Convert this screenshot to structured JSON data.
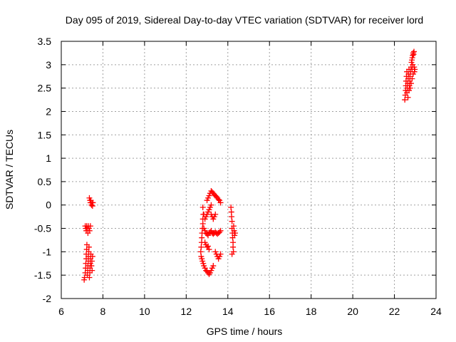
{
  "chart_data": {
    "type": "scatter",
    "title": "Day 095 of 2019, Sidereal Day-to-day VTEC variation (SDTVAR) for receiver lord",
    "xlabel": "GPS time / hours",
    "ylabel": "SDTVAR / TECUs",
    "xlim": [
      6,
      24
    ],
    "ylim": [
      -2,
      3.5
    ],
    "xticks": [
      6,
      8,
      10,
      12,
      14,
      16,
      18,
      20,
      22,
      24
    ],
    "yticks": [
      -2,
      -1.5,
      -1,
      -0.5,
      0,
      0.5,
      1,
      1.5,
      2,
      2.5,
      3,
      3.5
    ],
    "grid": true,
    "marker": "plus",
    "color": "#ff0000",
    "series": [
      {
        "points": [
          [
            7.1,
            -1.6
          ],
          [
            7.12,
            -1.55
          ],
          [
            7.15,
            -1.45
          ],
          [
            7.17,
            -1.35
          ],
          [
            7.18,
            -1.25
          ],
          [
            7.2,
            -1.15
          ],
          [
            7.2,
            -1.05
          ],
          [
            7.22,
            -0.95
          ],
          [
            7.23,
            -0.85
          ],
          [
            7.25,
            -1.5
          ],
          [
            7.27,
            -1.4
          ],
          [
            7.28,
            -1.3
          ],
          [
            7.3,
            -1.2
          ],
          [
            7.3,
            -1.1
          ],
          [
            7.32,
            -1.0
          ],
          [
            7.33,
            -0.9
          ],
          [
            7.35,
            -1.55
          ],
          [
            7.37,
            -1.45
          ],
          [
            7.38,
            -1.35
          ],
          [
            7.4,
            -1.25
          ],
          [
            7.4,
            -1.15
          ],
          [
            7.42,
            -1.05
          ],
          [
            7.45,
            -1.3
          ],
          [
            7.47,
            -1.2
          ],
          [
            7.48,
            -1.4
          ],
          [
            7.5,
            -1.1
          ],
          [
            7.15,
            -0.45
          ],
          [
            7.18,
            -0.5
          ],
          [
            7.2,
            -0.55
          ],
          [
            7.22,
            -0.45
          ],
          [
            7.25,
            -0.5
          ],
          [
            7.28,
            -0.6
          ],
          [
            7.3,
            -0.45
          ],
          [
            7.33,
            -0.5
          ],
          [
            7.36,
            -0.55
          ],
          [
            7.4,
            -0.45
          ],
          [
            7.35,
            0.15
          ],
          [
            7.38,
            0.1
          ],
          [
            7.4,
            0.05
          ],
          [
            7.42,
            0.1
          ],
          [
            7.45,
            0.0
          ],
          [
            7.47,
            0.05
          ],
          [
            7.5,
            -0.02
          ],
          [
            7.52,
            0.05
          ],
          [
            12.7,
            -1.0
          ],
          [
            12.72,
            -0.9
          ],
          [
            12.74,
            -0.8
          ],
          [
            12.75,
            -0.7
          ],
          [
            12.76,
            -0.6
          ],
          [
            12.78,
            -0.5
          ],
          [
            12.8,
            -0.4
          ],
          [
            12.8,
            -0.3
          ],
          [
            12.82,
            -0.2
          ],
          [
            12.72,
            -1.1
          ],
          [
            12.75,
            -1.15
          ],
          [
            12.78,
            -1.2
          ],
          [
            12.82,
            -1.25
          ],
          [
            12.85,
            -1.3
          ],
          [
            12.9,
            -1.35
          ],
          [
            12.95,
            -1.4
          ],
          [
            13.0,
            -1.42
          ],
          [
            13.05,
            -1.45
          ],
          [
            13.1,
            -1.48
          ],
          [
            13.15,
            -1.45
          ],
          [
            13.2,
            -1.4
          ],
          [
            13.25,
            -1.35
          ],
          [
            13.3,
            -1.3
          ],
          [
            12.8,
            -0.05
          ],
          [
            12.85,
            -0.2
          ],
          [
            12.9,
            -0.3
          ],
          [
            12.95,
            -0.25
          ],
          [
            13.0,
            -0.2
          ],
          [
            13.05,
            -0.15
          ],
          [
            13.1,
            -0.1
          ],
          [
            13.15,
            -0.05
          ],
          [
            13.2,
            0.0
          ],
          [
            13.0,
            0.1
          ],
          [
            13.05,
            0.15
          ],
          [
            13.1,
            0.2
          ],
          [
            13.15,
            0.25
          ],
          [
            13.2,
            0.3
          ],
          [
            13.25,
            0.28
          ],
          [
            13.3,
            0.25
          ],
          [
            13.35,
            0.22
          ],
          [
            13.4,
            0.2
          ],
          [
            13.45,
            0.18
          ],
          [
            13.5,
            0.15
          ],
          [
            13.55,
            0.12
          ],
          [
            13.6,
            0.1
          ],
          [
            13.65,
            0.05
          ],
          [
            12.85,
            -0.5
          ],
          [
            12.9,
            -0.55
          ],
          [
            12.95,
            -0.6
          ],
          [
            13.0,
            -0.62
          ],
          [
            13.05,
            -0.65
          ],
          [
            13.1,
            -0.6
          ],
          [
            13.15,
            -0.58
          ],
          [
            13.2,
            -0.55
          ],
          [
            13.25,
            -0.6
          ],
          [
            13.3,
            -0.62
          ],
          [
            13.35,
            -0.6
          ],
          [
            13.4,
            -0.58
          ],
          [
            13.45,
            -0.6
          ],
          [
            13.5,
            -0.62
          ],
          [
            13.55,
            -0.6
          ],
          [
            13.6,
            -0.58
          ],
          [
            13.65,
            -0.55
          ],
          [
            12.9,
            -0.8
          ],
          [
            12.95,
            -0.85
          ],
          [
            13.0,
            -0.9
          ],
          [
            13.05,
            -0.88
          ],
          [
            13.1,
            -0.95
          ],
          [
            13.2,
            -0.2
          ],
          [
            13.25,
            -0.25
          ],
          [
            13.3,
            -0.3
          ],
          [
            13.35,
            -0.25
          ],
          [
            13.4,
            -0.2
          ],
          [
            13.4,
            -1.0
          ],
          [
            13.45,
            -1.05
          ],
          [
            13.5,
            -1.1
          ],
          [
            13.55,
            -1.15
          ],
          [
            13.6,
            -1.1
          ],
          [
            13.65,
            -1.05
          ],
          [
            14.15,
            -0.05
          ],
          [
            14.17,
            -0.15
          ],
          [
            14.18,
            -0.25
          ],
          [
            14.2,
            -0.35
          ],
          [
            14.2,
            -0.5
          ],
          [
            14.22,
            -0.6
          ],
          [
            14.23,
            -0.7
          ],
          [
            14.25,
            -0.8
          ],
          [
            14.25,
            -0.9
          ],
          [
            14.27,
            -1.0
          ],
          [
            14.2,
            -1.05
          ],
          [
            14.3,
            -0.55
          ],
          [
            14.32,
            -0.65
          ],
          [
            14.35,
            -0.6
          ],
          [
            14.28,
            -0.45
          ],
          [
            22.5,
            2.25
          ],
          [
            22.52,
            2.35
          ],
          [
            22.54,
            2.45
          ],
          [
            22.55,
            2.55
          ],
          [
            22.56,
            2.65
          ],
          [
            22.58,
            2.75
          ],
          [
            22.6,
            2.85
          ],
          [
            22.6,
            2.4
          ],
          [
            22.62,
            2.5
          ],
          [
            22.64,
            2.6
          ],
          [
            22.65,
            2.3
          ],
          [
            22.66,
            2.7
          ],
          [
            22.68,
            2.8
          ],
          [
            22.7,
            2.9
          ],
          [
            22.7,
            2.45
          ],
          [
            22.72,
            2.55
          ],
          [
            22.74,
            2.65
          ],
          [
            22.75,
            2.75
          ],
          [
            22.76,
            2.5
          ],
          [
            22.78,
            2.85
          ],
          [
            22.8,
            2.95
          ],
          [
            22.8,
            2.6
          ],
          [
            22.82,
            3.05
          ],
          [
            22.84,
            3.1
          ],
          [
            22.85,
            2.9
          ],
          [
            22.86,
            3.15
          ],
          [
            22.88,
            3.2
          ],
          [
            22.9,
            3.25
          ],
          [
            22.92,
            3.22
          ],
          [
            22.94,
            3.28
          ],
          [
            22.95,
            2.95
          ],
          [
            22.96,
            2.85
          ],
          [
            22.98,
            2.9
          ],
          [
            22.9,
            2.8
          ],
          [
            22.85,
            2.7
          ],
          [
            22.88,
            3.0
          ]
        ]
      }
    ]
  }
}
